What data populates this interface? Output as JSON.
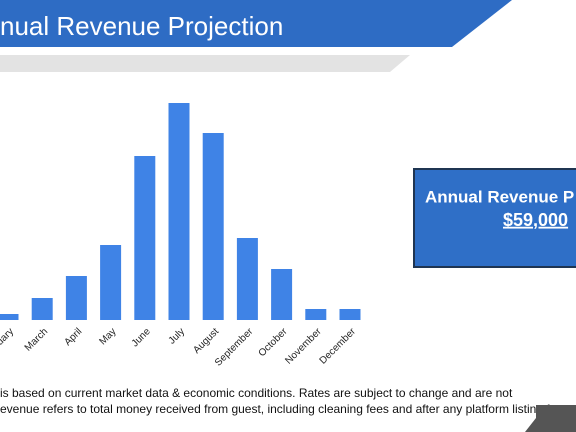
{
  "header": {
    "title": "nual Revenue Projection"
  },
  "chart_data": {
    "type": "bar",
    "categories": [
      "uary",
      "March",
      "April",
      "May",
      "June",
      "July",
      "August",
      "September",
      "October",
      "November",
      "December"
    ],
    "values": [
      6,
      22,
      44,
      75,
      164,
      217,
      187,
      82,
      51,
      11,
      11
    ],
    "color": "#3f83e6",
    "ylim": [
      0,
      250
    ]
  },
  "summary_box": {
    "title": "Annual Revenue P",
    "amount": "$59,000"
  },
  "footnote": [
    "is based on current market data & economic conditions. Rates are subject to change and are not",
    "evenue refers to total money received from guest, including cleaning fees and after any platform listing fees"
  ]
}
